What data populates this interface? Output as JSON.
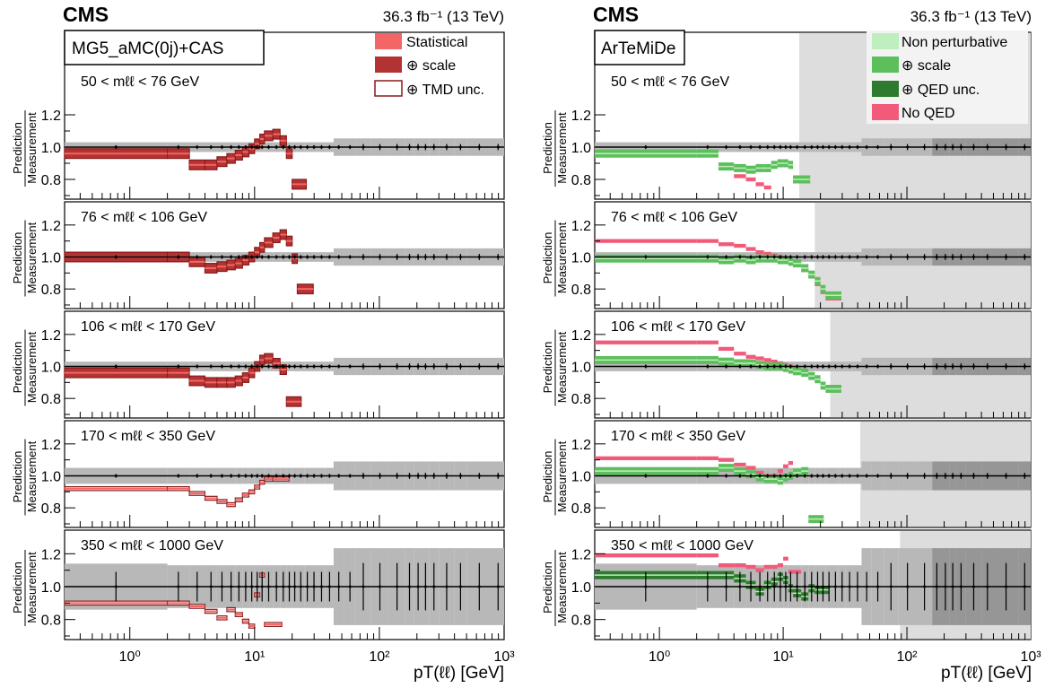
{
  "header": {
    "experiment": "CMS",
    "lumi_label": "36.3 fb⁻¹ (13 TeV)"
  },
  "chart_data": [
    {
      "type": "ratio-panels",
      "generator": "MG5_aMC(0j)+CAS",
      "xlabel": "pT(ℓℓ) [GeV]",
      "ylabel_top": "Prediction",
      "ylabel_bottom": "Measurement",
      "x_scale": "log",
      "xlim": [
        0.3,
        1000
      ],
      "ylim": [
        0.7,
        1.3
      ],
      "y_ticks": [
        "0.8",
        "1.0",
        "1.2"
      ],
      "x_ticks": [
        "10⁰",
        "10¹",
        "10²",
        "10³"
      ],
      "legend": [
        "Statistical",
        "⊕ scale",
        "⊕ TMD unc."
      ],
      "colors": {
        "statistical": "#f46565",
        "scale": "#b33333",
        "tmd_edge": "#8a1a1a",
        "meas_band": "#b8b8b8",
        "meas_band_dark": "#969696"
      },
      "panels": [
        {
          "mass_range": "50 < mℓℓ < 76 GeV",
          "bins": [
            0,
            1,
            2,
            3,
            4,
            5,
            6,
            8,
            10,
            12,
            14,
            17,
            20,
            24,
            28,
            34,
            40,
            50,
            60
          ],
          "pred": [
            0.96,
            0.96,
            0.89,
            0.89,
            0.91,
            0.93,
            0.95,
            0.97,
            0.99,
            1.02,
            1.05,
            1.07,
            1.08,
            1.04,
            0.96,
            0.77,
            null,
            null
          ]
        },
        {
          "mass_range": "76 < mℓℓ < 106 GeV",
          "bins": [
            0,
            1,
            2,
            3,
            4,
            5,
            6,
            8,
            10,
            12,
            14,
            17,
            20,
            24,
            28,
            34,
            40,
            50,
            60
          ],
          "pred": [
            1.0,
            1.0,
            0.97,
            0.93,
            0.94,
            0.95,
            0.96,
            0.98,
            1.0,
            1.03,
            1.06,
            1.09,
            1.12,
            1.14,
            1.1,
            0.99,
            0.8,
            null
          ]
        },
        {
          "mass_range": "106 < mℓℓ < 170 GeV",
          "bins": [
            0,
            1,
            2,
            3,
            4,
            5,
            6,
            8,
            10,
            12,
            14,
            17,
            20,
            24,
            28,
            34,
            40,
            50,
            60
          ],
          "pred": [
            0.96,
            0.96,
            0.91,
            0.9,
            0.9,
            0.9,
            0.91,
            0.93,
            0.96,
            1.0,
            1.04,
            1.05,
            1.02,
            0.98,
            0.78,
            null,
            null,
            null
          ]
        },
        {
          "mass_range": "170 < mℓℓ < 350 GeV",
          "bins": [
            0,
            1,
            2,
            3,
            4,
            5,
            6,
            8,
            10,
            12,
            14,
            17,
            20,
            24,
            28,
            34,
            40,
            50,
            60
          ],
          "pred": [
            0.92,
            0.92,
            0.89,
            0.86,
            0.84,
            0.82,
            0.85,
            0.88,
            0.9,
            0.93,
            0.96,
            0.98,
            0.98,
            null,
            null,
            null,
            null,
            null
          ]
        },
        {
          "mass_range": "350 < mℓℓ < 1000 GeV",
          "bins": [
            0,
            1,
            2,
            3,
            4,
            5,
            6,
            8,
            10,
            12,
            14,
            17,
            20,
            24,
            28,
            34,
            40,
            50,
            60
          ],
          "pred": [
            0.9,
            0.9,
            0.88,
            0.85,
            0.81,
            0.86,
            0.83,
            0.79,
            0.76,
            0.95,
            1.07,
            0.77,
            null,
            null,
            null,
            null,
            null,
            null
          ]
        }
      ]
    },
    {
      "type": "ratio-panels",
      "generator": "ArTeMiDe",
      "xlabel": "pT(ℓℓ) [GeV]",
      "ylabel_top": "Prediction",
      "ylabel_bottom": "Measurement",
      "x_scale": "log",
      "xlim": [
        0.3,
        1000
      ],
      "ylim": [
        0.7,
        1.3
      ],
      "y_ticks": [
        "0.8",
        "1.0",
        "1.2"
      ],
      "x_ticks": [
        "10⁰",
        "10¹",
        "10²",
        "10³"
      ],
      "legend": [
        "Non perturbative",
        "⊕ scale",
        "⊕ QED unc.",
        "No QED"
      ],
      "colors": {
        "nonpert": "#bfeebf",
        "scale": "#5cbf5c",
        "qed": "#2e7a2e",
        "noqed": "#f25a7a",
        "shade": "#dddddd"
      },
      "panels": [
        {
          "mass_range": "50 < mℓℓ < 76 GeV",
          "np_edge": 13.5,
          "pred": [
            0.96,
            0.96,
            0.88,
            0.87,
            0.86,
            0.87,
            0.87,
            0.89,
            0.9,
            0.9,
            0.89,
            0.8,
            null,
            null,
            null,
            null,
            null,
            null
          ],
          "noqed": [
            null,
            null,
            null,
            0.82,
            0.8,
            0.77,
            0.75,
            null,
            null,
            null,
            null,
            null,
            null,
            null,
            null,
            null,
            null,
            null
          ]
        },
        {
          "mass_range": "76 < mℓℓ < 106 GeV",
          "np_edge": 18,
          "pred": [
            0.99,
            0.99,
            0.98,
            0.99,
            0.98,
            0.99,
            0.99,
            0.99,
            0.98,
            0.98,
            0.97,
            0.96,
            0.93,
            0.89,
            0.85,
            0.8,
            0.76,
            null
          ],
          "noqed": [
            1.1,
            1.1,
            1.08,
            1.07,
            1.05,
            1.03,
            1.02,
            1.01,
            1.0,
            0.99,
            0.97,
            0.95,
            0.92,
            0.88,
            0.83,
            0.78,
            0.74,
            null
          ]
        },
        {
          "mass_range": "106 < mℓℓ < 170 GeV",
          "np_edge": 24,
          "pred": [
            1.04,
            1.04,
            1.03,
            1.02,
            1.02,
            1.01,
            1.0,
            1.0,
            1.0,
            0.99,
            0.98,
            0.97,
            0.96,
            0.94,
            0.92,
            0.88,
            0.86,
            null
          ],
          "noqed": [
            1.15,
            1.15,
            1.11,
            1.08,
            1.06,
            1.05,
            1.04,
            1.03,
            1.02,
            1.01,
            1.0,
            0.98,
            0.96,
            null,
            null,
            null,
            null,
            null
          ]
        },
        {
          "mass_range": "170 < mℓℓ < 350 GeV",
          "np_edge": 42,
          "pred": [
            1.03,
            1.03,
            1.05,
            1.03,
            1.01,
            0.99,
            0.98,
            0.98,
            0.97,
            0.99,
            1.0,
            1.02,
            1.03,
            0.73,
            null,
            null,
            null,
            null
          ],
          "noqed": [
            1.11,
            1.11,
            1.1,
            1.07,
            1.05,
            1.02,
            1.0,
            1.0,
            1.03,
            1.06,
            1.08,
            null,
            null,
            null,
            null,
            null,
            null,
            null
          ]
        },
        {
          "mass_range": "350 < mℓℓ < 1000 GeV",
          "np_edge": 88,
          "pred": [
            1.07,
            1.07,
            1.07,
            1.05,
            1.01,
            0.97,
            1.01,
            1.03,
            1.06,
            1.04,
            0.99,
            0.96,
            0.94,
            0.99,
            0.98,
            null,
            null,
            null
          ],
          "noqed": [
            1.19,
            1.19,
            1.13,
            1.13,
            1.12,
            1.1,
            1.12,
            1.12,
            1.13,
            1.17,
            1.09,
            1.09,
            null,
            null,
            null,
            null,
            null,
            null
          ]
        }
      ]
    }
  ]
}
